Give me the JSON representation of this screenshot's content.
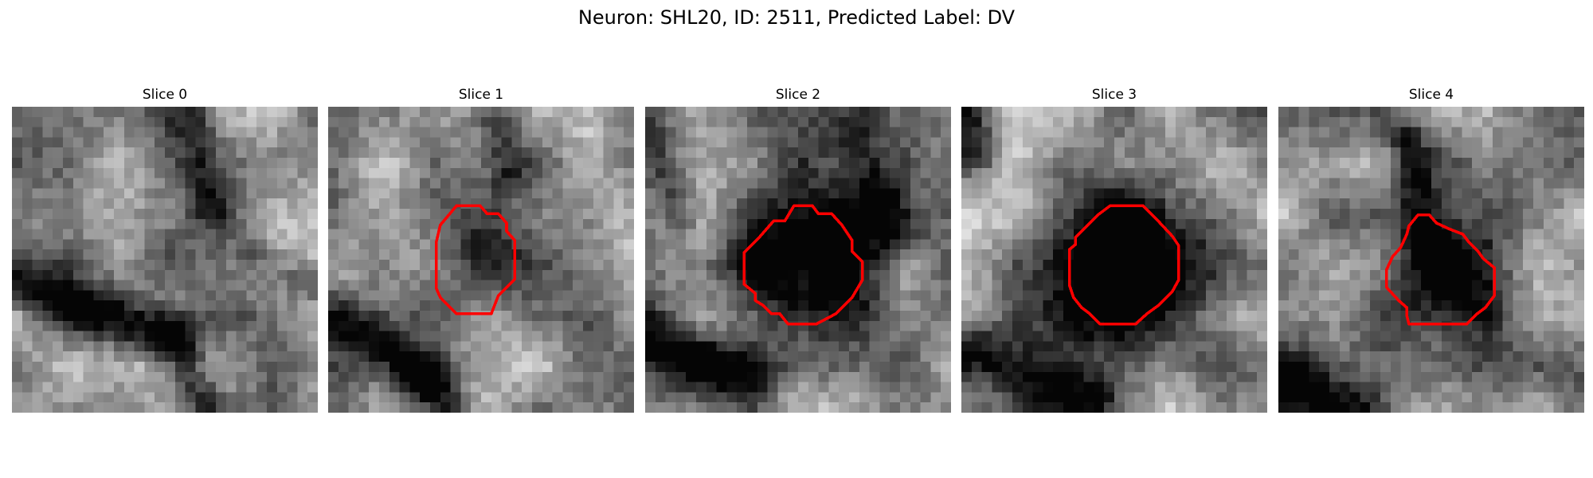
{
  "figure": {
    "title": "Neuron: SHL20, ID: 2511, Predicted Label: DV"
  },
  "panels": [
    {
      "title": "Slice 0",
      "has_contour": false
    },
    {
      "title": "Slice 1",
      "has_contour": true
    },
    {
      "title": "Slice 2",
      "has_contour": true
    },
    {
      "title": "Slice 3",
      "has_contour": true
    },
    {
      "title": "Slice 4",
      "has_contour": true
    }
  ],
  "colors": {
    "contour": "#ff0000",
    "colormap": "grayscale"
  }
}
